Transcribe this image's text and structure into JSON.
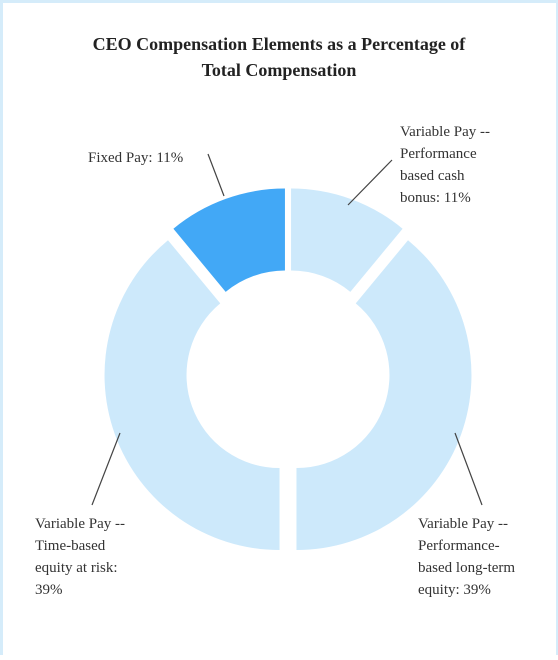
{
  "chart_data": {
    "type": "donut",
    "title": "CEO Compensation Elements as a Percentage of Total Compensation",
    "labels": [
      "Variable Pay -- Performance based cash bonus: 11%",
      "Variable Pay -- Performance-based long-term equity: 39%",
      "Variable Pay -- Time-based equity at risk: 39%",
      "Fixed Pay: 11%"
    ],
    "values": [
      11,
      39,
      39,
      11
    ],
    "colors": [
      "#cde9fb",
      "#cde9fb",
      "#cde9fb",
      "#42a8f6"
    ]
  }
}
